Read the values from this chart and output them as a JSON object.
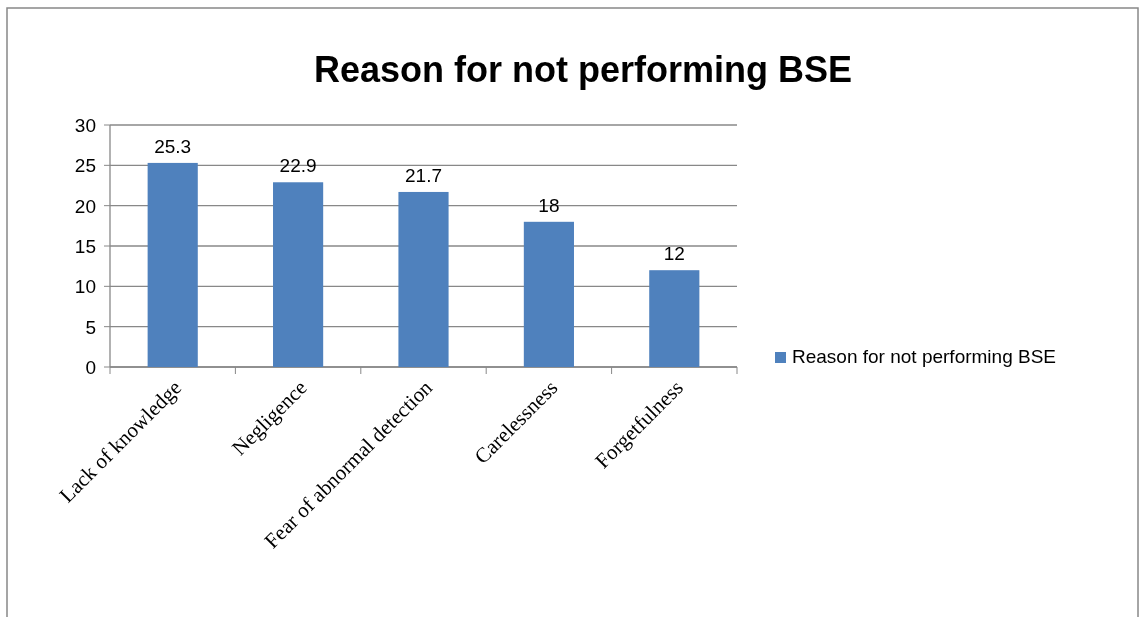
{
  "chart_data": {
    "type": "bar",
    "title": "Reason for not performing BSE",
    "categories": [
      "Lack of knowledge",
      "Negligence",
      "Fear of abnormal detection",
      "Carelessness",
      "Forgetfulness"
    ],
    "series": [
      {
        "name": "Reason for not performing BSE",
        "color": "#4f81bd",
        "values": [
          25.3,
          22.9,
          21.7,
          18,
          12
        ]
      }
    ],
    "ylim": [
      0,
      30
    ],
    "yticks": [
      0,
      5,
      10,
      15,
      20,
      25,
      30
    ],
    "grid": "y",
    "legend": "right",
    "data_labels": true
  }
}
